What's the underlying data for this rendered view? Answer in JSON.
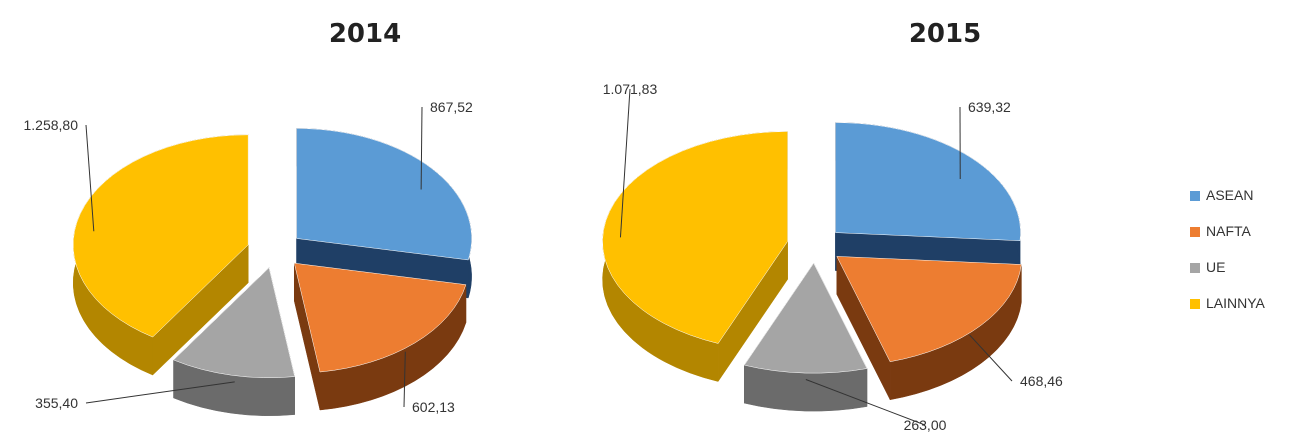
{
  "chart_data": [
    {
      "type": "pie",
      "title": "2014",
      "categories": [
        "ASEAN",
        "NAFTA",
        "UE",
        "LAINNYA"
      ],
      "values": [
        867.52,
        602.13,
        355.4,
        1258.8
      ],
      "data_labels": [
        "867,52",
        "602,13",
        "355,40",
        "1.258,80"
      ],
      "style": "3d-exploded"
    },
    {
      "type": "pie",
      "title": "2015",
      "categories": [
        "ASEAN",
        "NAFTA",
        "UE",
        "LAINNYA"
      ],
      "values": [
        639.32,
        468.46,
        263.0,
        1071.83
      ],
      "data_labels": [
        "639,32",
        "468,46",
        "263,00",
        "1.071,83"
      ],
      "style": "3d-exploded"
    }
  ],
  "legend": {
    "placement": "right",
    "items": [
      {
        "label": "ASEAN",
        "color": "#5b9bd5"
      },
      {
        "label": "NAFTA",
        "color": "#ed7d31"
      },
      {
        "label": "UE",
        "color": "#a5a5a5"
      },
      {
        "label": "LAINNYA",
        "color": "#ffc000"
      }
    ]
  },
  "colors": {
    "top": [
      "#5b9bd5",
      "#ed7d31",
      "#a5a5a5",
      "#ffc000"
    ],
    "side": [
      "#1f3f66",
      "#7a3a10",
      "#6b6b6b",
      "#b38600"
    ]
  }
}
